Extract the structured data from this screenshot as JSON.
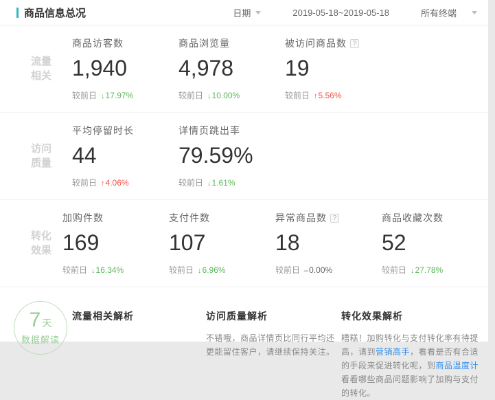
{
  "icons": {
    "help": "?"
  },
  "header": {
    "title": "商品信息总况",
    "date_label": "日期",
    "date_range": "2019-05-18~2019-05-18",
    "terminal_label": "所有终端"
  },
  "compare_label": "较前日",
  "sections": [
    {
      "group_line1": "流量",
      "group_line2": "相关",
      "metrics": [
        {
          "label": "商品访客数",
          "value": "1,940",
          "trend": "down",
          "arrow": "↓",
          "percent": "17.97%"
        },
        {
          "label": "商品浏览量",
          "value": "4,978",
          "trend": "down",
          "arrow": "↓",
          "percent": "10.00%"
        },
        {
          "label": "被访问商品数",
          "value": "19",
          "trend": "up",
          "arrow": "↑",
          "percent": "5.56%"
        }
      ]
    },
    {
      "group_line1": "访问",
      "group_line2": "质量",
      "metrics": [
        {
          "label": "平均停留时长",
          "value": "44",
          "trend": "up",
          "arrow": "↑",
          "percent": "4.06%"
        },
        {
          "label": "详情页跳出率",
          "value": "79.59%",
          "trend": "down",
          "arrow": "↓",
          "percent": "1.61%"
        }
      ]
    },
    {
      "group_line1": "转化",
      "group_line2": "效果",
      "metrics": [
        {
          "label": "加购件数",
          "value": "169",
          "trend": "down",
          "arrow": "↓",
          "percent": "16.34%"
        },
        {
          "label": "支付件数",
          "value": "107",
          "trend": "down",
          "arrow": "↓",
          "percent": "6.96%"
        },
        {
          "label": "异常商品数",
          "value": "18",
          "trend": "flat",
          "arrow": "–",
          "percent": "0.00%"
        },
        {
          "label": "商品收藏次数",
          "value": "52",
          "trend": "down",
          "arrow": "↓",
          "percent": "27.78%"
        }
      ]
    }
  ],
  "insights": {
    "badge": {
      "number": "7",
      "unit": "天",
      "subtitle": "数据解读"
    },
    "columns": [
      {
        "heading": "流量相关解析",
        "body": ""
      },
      {
        "heading": "访问质量解析",
        "body": "不错哦，商品详情页比同行平均还更能留住客户，请继续保持关注。"
      },
      {
        "heading": "转化效果解析"
      }
    ],
    "conversion": {
      "part1": "糟糕！加购转化与支付转化率有待提高，请到",
      "link1": "营销高手",
      "part2": "，看看是否有合适的手段来促进转化呢，到",
      "link2": "商品温度计",
      "part3": "看看哪些商品问题影响了加购与支付的转化。"
    }
  },
  "colors": {
    "accent": "#2fb8c6",
    "up": "#f0544a",
    "down": "#5cb85c",
    "link": "#2e8ded"
  }
}
